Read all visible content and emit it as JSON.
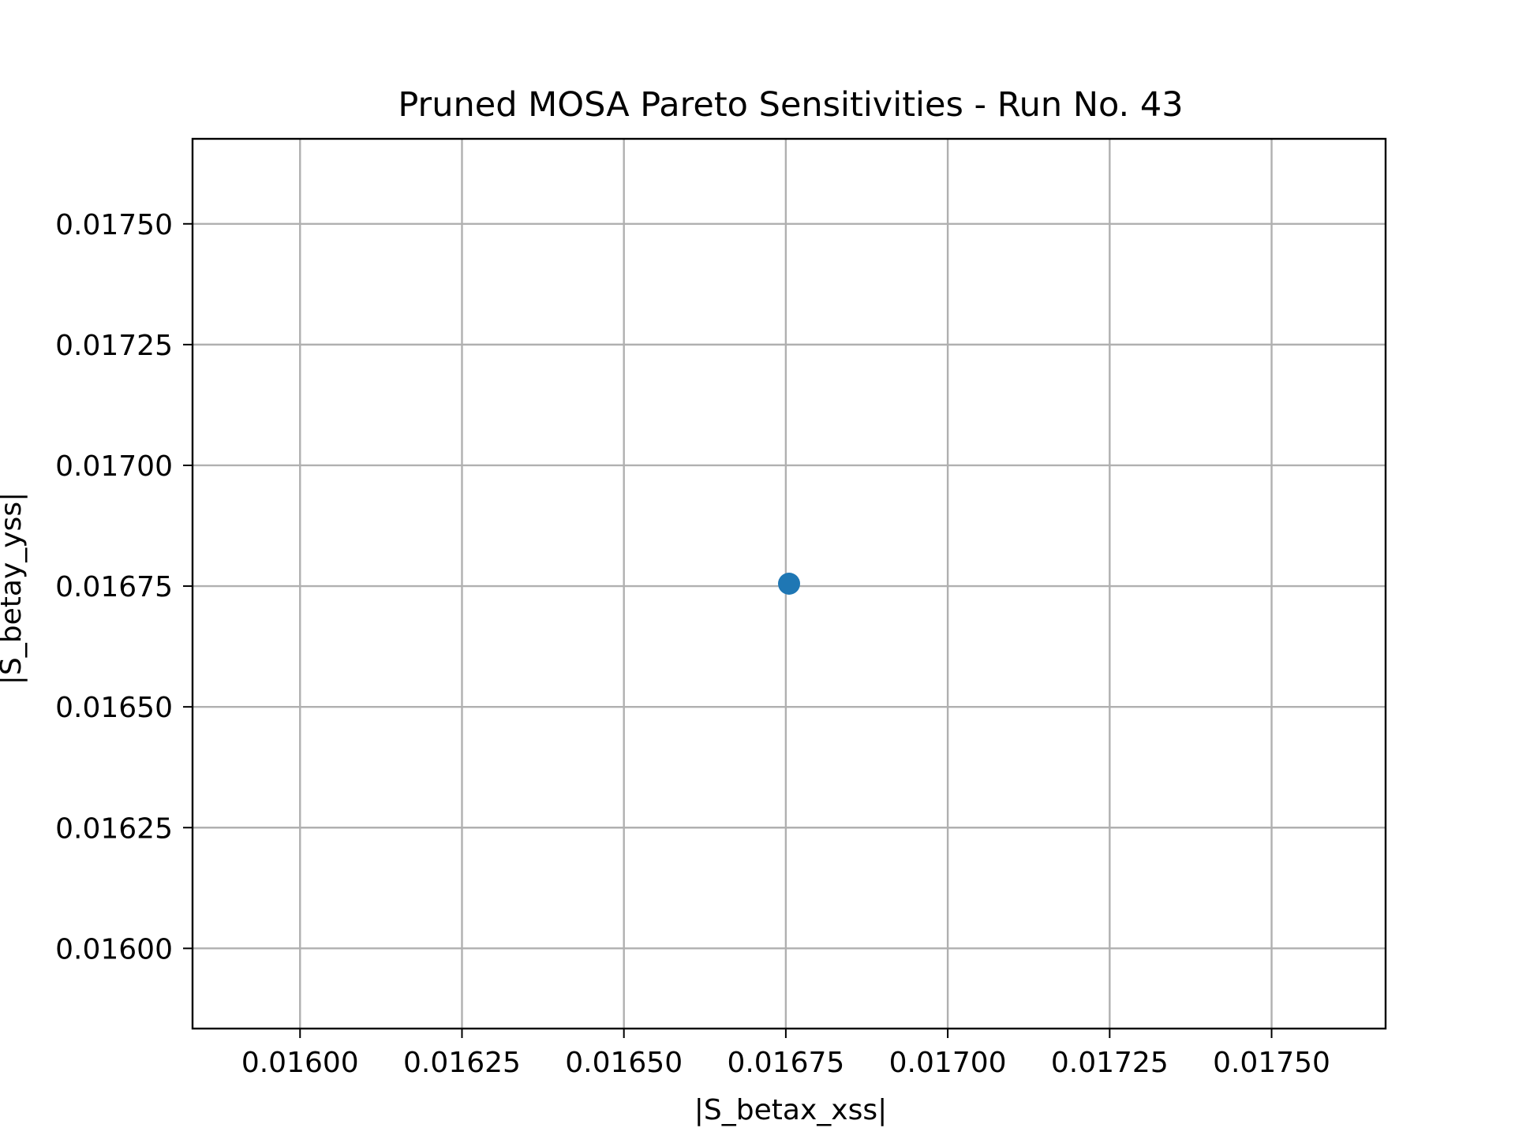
{
  "chart_data": {
    "type": "scatter",
    "title": "Pruned MOSA Pareto Sensitivities - Run No. 43",
    "xlabel": "|S_betax_xss|",
    "ylabel": "|S_betay_yss|",
    "xlim": [
      0.015834,
      0.017676
    ],
    "ylim": [
      0.015834,
      0.017676
    ],
    "x_ticks": [
      0.016,
      0.01625,
      0.0165,
      0.01675,
      0.017,
      0.01725,
      0.0175
    ],
    "y_ticks": [
      0.016,
      0.01625,
      0.0165,
      0.01675,
      0.017,
      0.01725,
      0.0175
    ],
    "x_tick_labels": [
      "0.01600",
      "0.01625",
      "0.01650",
      "0.01675",
      "0.01700",
      "0.01725",
      "0.01750"
    ],
    "y_tick_labels": [
      "0.01600",
      "0.01625",
      "0.01650",
      "0.01675",
      "0.01700",
      "0.01725",
      "0.01750"
    ],
    "grid": true,
    "series": [
      {
        "color": "#1f77b4",
        "points": [
          {
            "x": 0.016755,
            "y": 0.016755
          }
        ]
      }
    ],
    "colors": {
      "grid": "#b0b0b0",
      "axes": "#000000",
      "marker": "#1f77b4"
    }
  }
}
